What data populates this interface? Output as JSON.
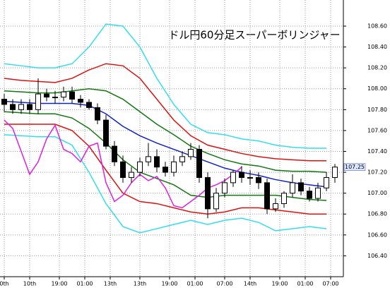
{
  "chart_data": {
    "type": "candlestick",
    "title": "ドル円60分足スーパーボリンジャー",
    "xlim": [
      -0.5,
      40
    ],
    "ylim": [
      106.2,
      108.85
    ],
    "yticks": [
      {
        "value": 106.4,
        "label": "106.40"
      },
      {
        "value": 106.6,
        "label": "106.60"
      },
      {
        "value": 106.8,
        "label": "106.80"
      },
      {
        "value": 107.0,
        "label": "107.00"
      },
      {
        "value": 107.2,
        "label": "107.20"
      },
      {
        "value": 107.4,
        "label": "107.40"
      },
      {
        "value": 107.6,
        "label": "107.60"
      },
      {
        "value": 107.8,
        "label": "107.80"
      },
      {
        "value": 108.0,
        "label": "108.00"
      },
      {
        "value": 108.2,
        "label": "108.20"
      },
      {
        "value": 108.4,
        "label": "108.40"
      },
      {
        "value": 108.6,
        "label": "108.60"
      }
    ],
    "xticks": [
      {
        "value": 0,
        "label": "0th"
      },
      {
        "value": 3,
        "label": "10th"
      },
      {
        "value": 6.5,
        "label": "19:00"
      },
      {
        "value": 9.5,
        "label": "01:00"
      },
      {
        "value": 12.5,
        "label": "13th"
      },
      {
        "value": 16,
        "label": "13th"
      },
      {
        "value": 19.5,
        "label": "19:00"
      },
      {
        "value": 22.5,
        "label": "01:00"
      },
      {
        "value": 26,
        "label": "07:00"
      },
      {
        "value": 29,
        "label": "14th"
      },
      {
        "value": 32.5,
        "label": "19:00"
      },
      {
        "value": 35.5,
        "label": "01:00"
      },
      {
        "value": 38.5,
        "label": "07:00"
      }
    ],
    "grid": true,
    "up_color": "#ffffff",
    "down_color": "#000000",
    "open": [
      107.9,
      107.85,
      107.8,
      107.85,
      107.8,
      107.95,
      107.92,
      107.92,
      107.97,
      107.9,
      107.87,
      107.82,
      107.7,
      107.45,
      107.3,
      107.15,
      107.2,
      107.3,
      107.35,
      107.25,
      107.2,
      107.3,
      107.35,
      107.42,
      107.15,
      106.85,
      107.0,
      107.1,
      107.2,
      107.15,
      107.15,
      107.1,
      106.85,
      106.9,
      107.0,
      107.1,
      107.02,
      106.95,
      107.05,
      107.15
    ],
    "high": [
      107.95,
      107.9,
      107.9,
      107.9,
      108.1,
      108.0,
      107.98,
      108.02,
      108.02,
      107.94,
      107.9,
      107.86,
      107.75,
      107.5,
      107.36,
      107.25,
      107.34,
      107.48,
      107.42,
      107.3,
      107.36,
      107.4,
      107.48,
      107.46,
      107.2,
      107.05,
      107.14,
      107.22,
      107.26,
      107.22,
      107.2,
      107.14,
      106.95,
      107.02,
      107.18,
      107.14,
      107.06,
      107.1,
      107.2,
      107.28
    ],
    "low": [
      107.78,
      107.76,
      107.76,
      107.76,
      107.76,
      107.88,
      107.86,
      107.88,
      107.86,
      107.82,
      107.8,
      107.66,
      107.42,
      107.26,
      107.1,
      107.1,
      107.16,
      107.26,
      107.2,
      107.16,
      107.16,
      107.26,
      107.32,
      107.1,
      106.76,
      106.82,
      106.96,
      107.06,
      107.1,
      107.08,
      107.04,
      106.8,
      106.82,
      106.86,
      106.96,
      106.98,
      106.92,
      106.92,
      107.02,
      107.1
    ],
    "close": [
      107.85,
      107.8,
      107.85,
      107.8,
      107.95,
      107.92,
      107.92,
      107.97,
      107.9,
      107.87,
      107.82,
      107.7,
      107.45,
      107.3,
      107.15,
      107.2,
      107.3,
      107.35,
      107.25,
      107.2,
      107.3,
      107.35,
      107.42,
      107.15,
      106.85,
      107.0,
      107.1,
      107.2,
      107.15,
      107.15,
      107.1,
      106.85,
      106.9,
      107.0,
      107.1,
      107.02,
      106.95,
      107.05,
      107.15,
      107.25
    ],
    "band_x": [
      0,
      2,
      4,
      6,
      8,
      10,
      12,
      14,
      16,
      18,
      20,
      22,
      24,
      26,
      28,
      30,
      32,
      34,
      36,
      38
    ],
    "bands": [
      {
        "color": "#33ddee",
        "values": [
          108.24,
          108.22,
          108.2,
          108.2,
          108.24,
          108.4,
          108.62,
          108.6,
          108.4,
          108.1,
          107.85,
          107.66,
          107.58,
          107.56,
          107.52,
          107.5,
          107.46,
          107.44,
          107.43,
          107.43
        ]
      },
      {
        "color": "#dd1111",
        "values": [
          108.1,
          108.08,
          108.07,
          108.06,
          108.1,
          108.18,
          108.24,
          108.22,
          108.1,
          107.9,
          107.7,
          107.55,
          107.46,
          107.42,
          107.38,
          107.35,
          107.33,
          107.32,
          107.31,
          107.31
        ]
      },
      {
        "color": "#117711",
        "values": [
          107.98,
          107.97,
          107.96,
          107.96,
          107.98,
          108.0,
          107.98,
          107.9,
          107.78,
          107.66,
          107.56,
          107.45,
          107.38,
          107.32,
          107.28,
          107.26,
          107.22,
          107.21,
          107.21,
          107.2
        ]
      },
      {
        "color": "#1122cc",
        "values": [
          107.88,
          107.87,
          107.86,
          107.86,
          107.86,
          107.84,
          107.76,
          107.64,
          107.55,
          107.48,
          107.42,
          107.36,
          107.3,
          107.24,
          107.2,
          107.17,
          107.13,
          107.1,
          107.08,
          107.06
        ]
      },
      {
        "color": "#117711",
        "values": [
          107.78,
          107.77,
          107.76,
          107.76,
          107.72,
          107.62,
          107.48,
          107.32,
          107.2,
          107.14,
          107.08,
          106.98,
          106.96,
          106.98,
          106.98,
          106.98,
          106.98,
          106.96,
          106.94,
          106.93
        ]
      },
      {
        "color": "#dd1111",
        "values": [
          107.66,
          107.66,
          107.66,
          107.66,
          107.6,
          107.45,
          107.22,
          107.0,
          106.92,
          106.9,
          106.86,
          106.82,
          106.8,
          106.82,
          106.86,
          106.86,
          106.84,
          106.82,
          106.8,
          106.8
        ]
      },
      {
        "color": "#33ddee",
        "values": [
          107.56,
          107.55,
          107.54,
          107.54,
          107.46,
          107.2,
          106.9,
          106.68,
          106.62,
          106.66,
          106.7,
          106.74,
          106.7,
          106.74,
          106.76,
          106.72,
          106.64,
          106.66,
          106.68,
          106.66
        ]
      }
    ],
    "lagging": {
      "color": "#dd22dd",
      "x": [
        0,
        1,
        2,
        3,
        4,
        5,
        6,
        7,
        8,
        9,
        10,
        11,
        12,
        13,
        14,
        15,
        16,
        17,
        18,
        19,
        20,
        21,
        22,
        23,
        24,
        25,
        26,
        27,
        28
      ],
      "values": [
        107.7,
        107.62,
        107.4,
        107.18,
        107.3,
        107.52,
        107.65,
        107.42,
        107.38,
        107.3,
        107.45,
        107.48,
        107.1,
        106.92,
        106.98,
        107.1,
        107.18,
        107.12,
        107.16,
        107.05,
        106.88,
        106.86,
        106.92,
        106.98,
        107.05,
        107.08,
        107.12,
        107.18,
        107.25
      ]
    },
    "last_price": 107.25
  }
}
